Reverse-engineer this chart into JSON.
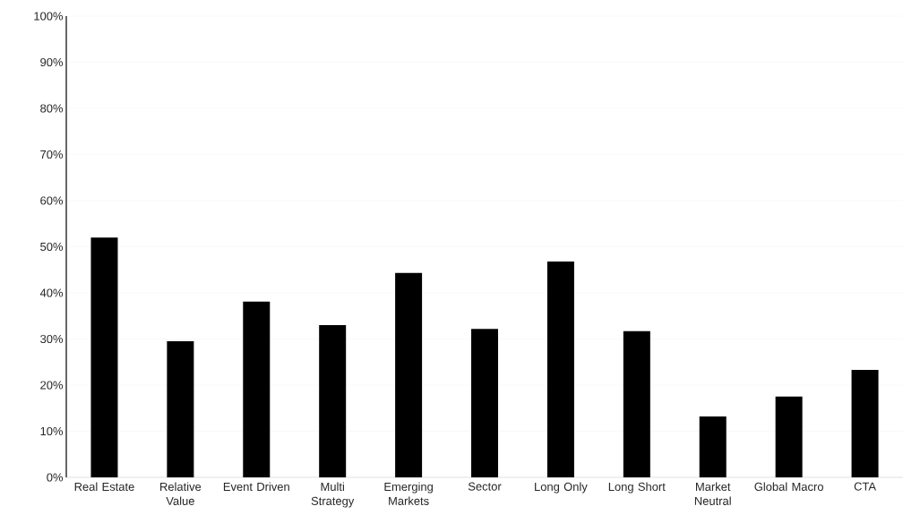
{
  "chart_data": {
    "type": "bar",
    "categories": [
      "Real Estate",
      "Relative Value",
      "Event Driven",
      "Multi Strategy",
      "Emerging Markets",
      "Sector",
      "Long Only",
      "Long Short",
      "Market Neutral",
      "Global Macro",
      "CTA"
    ],
    "values": [
      52,
      29.5,
      38.1,
      33,
      44.3,
      32.2,
      46.8,
      31.7,
      13.2,
      17.5,
      23.3
    ],
    "color": "#000000",
    "ylim": [
      0,
      100
    ],
    "yticks": [
      {
        "value": 0,
        "label": "0%"
      },
      {
        "value": 10,
        "label": "10%"
      },
      {
        "value": 20,
        "label": "20%"
      },
      {
        "value": 30,
        "label": "30%"
      },
      {
        "value": 40,
        "label": "40%"
      },
      {
        "value": 50,
        "label": "50%"
      },
      {
        "value": 60,
        "label": "60%"
      },
      {
        "value": 70,
        "label": "70%"
      },
      {
        "value": 80,
        "label": "80%"
      },
      {
        "value": 90,
        "label": "90%"
      },
      {
        "value": 100,
        "label": "100%"
      }
    ],
    "grid": "y"
  }
}
